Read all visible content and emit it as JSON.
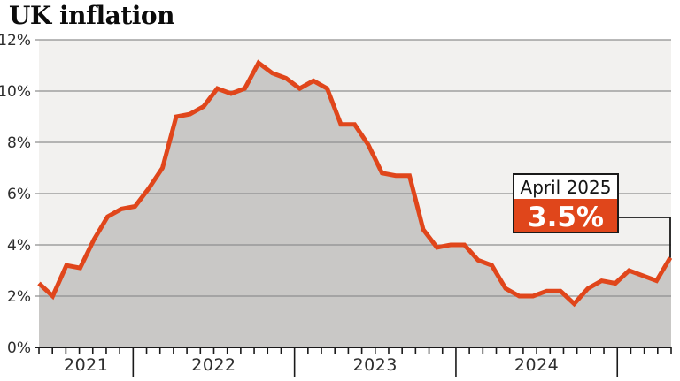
{
  "title": "UK inflation",
  "callout": {
    "label": "April 2025",
    "value": "3.5%"
  },
  "y_axis": {
    "tick_labels": [
      "12%",
      "10%",
      "8%",
      "6%",
      "4%",
      "2%",
      "0%"
    ],
    "min": 0,
    "max": 12,
    "step": 2
  },
  "x_axis": {
    "year_labels": [
      "2021",
      "2022",
      "2023",
      "2024"
    ]
  },
  "colors": {
    "line": "#e0461b",
    "area_fill": "#c9c8c6",
    "plot_bg": "#f2f1ef",
    "gridline": "#8f8f8f",
    "axis": "#1a1a1a",
    "label_text": "#2e2e2e",
    "title_text": "#0b0b0b",
    "callout_accent": "#e0461b",
    "callout_bg": "#ffffff",
    "callout_border": "#1a1a1a",
    "callout_label_text": "#141414",
    "callout_value_text": "#ffffff"
  },
  "chart_data": {
    "type": "area",
    "title": "UK inflation",
    "unit": "%",
    "xlabel": "",
    "ylabel": "",
    "ylim": [
      0,
      12
    ],
    "grid": true,
    "x": [
      "2021-06",
      "2021-07",
      "2021-08",
      "2021-09",
      "2021-10",
      "2021-11",
      "2021-12",
      "2022-01",
      "2022-02",
      "2022-03",
      "2022-04",
      "2022-05",
      "2022-06",
      "2022-07",
      "2022-08",
      "2022-09",
      "2022-10",
      "2022-11",
      "2022-12",
      "2023-01",
      "2023-02",
      "2023-03",
      "2023-04",
      "2023-05",
      "2023-06",
      "2023-07",
      "2023-08",
      "2023-09",
      "2023-10",
      "2023-11",
      "2023-12",
      "2024-01",
      "2024-02",
      "2024-03",
      "2024-04",
      "2024-05",
      "2024-06",
      "2024-07",
      "2024-08",
      "2024-09",
      "2024-10",
      "2024-11",
      "2024-12",
      "2025-01",
      "2025-02",
      "2025-03",
      "2025-04"
    ],
    "values": [
      2.5,
      2.0,
      3.2,
      3.1,
      4.2,
      5.1,
      5.4,
      5.5,
      6.2,
      7.0,
      9.0,
      9.1,
      9.4,
      10.1,
      9.9,
      10.1,
      11.1,
      10.7,
      10.5,
      10.1,
      10.4,
      10.1,
      8.7,
      8.7,
      7.9,
      6.8,
      6.7,
      6.7,
      4.6,
      3.9,
      4.0,
      4.0,
      3.4,
      3.2,
      2.3,
      2.0,
      2.0,
      2.2,
      2.2,
      1.7,
      2.3,
      2.6,
      2.5,
      3.0,
      2.8,
      2.6,
      3.5
    ],
    "annotation": {
      "label": "April 2025",
      "value": 3.5
    }
  }
}
